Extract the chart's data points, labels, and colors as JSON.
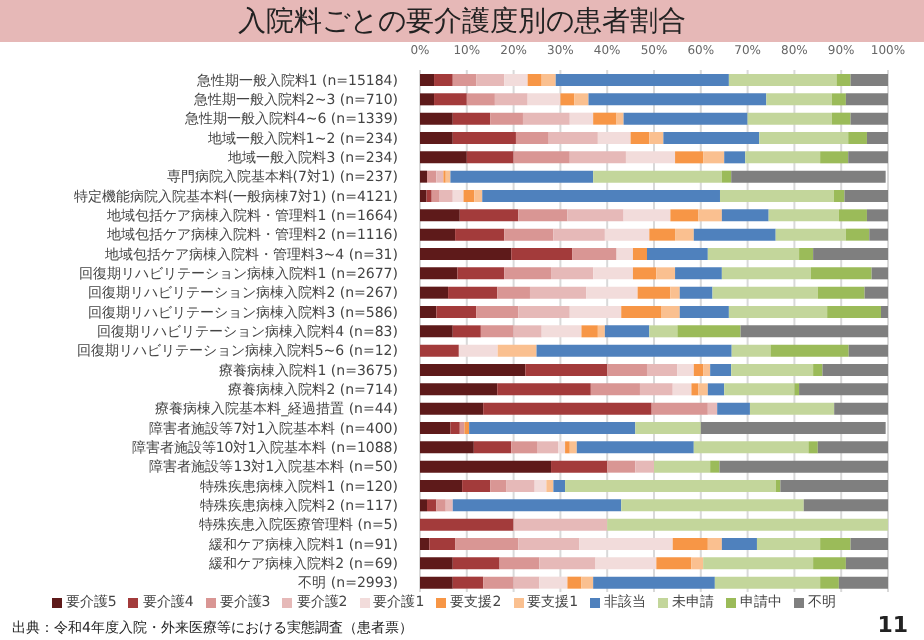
{
  "chart_data": {
    "type": "bar",
    "title": "入院料ごとの要介護度別の患者割合",
    "orientation": "horizontal",
    "stacked": true,
    "grid": "x",
    "legend": "bottom",
    "categories": [
      "急性期一般入院料1 (n=15184)",
      "急性期一般入院料2~3 (n=710)",
      "急性期一般入院料4~6 (n=1339)",
      "地域一般入院料1~2 (n=234)",
      "地域一般入院料3 (n=234)",
      "専門病院入院基本料(7対1) (n=237)",
      "特定機能病院入院基本料(一般病棟7対1) (n=4121)",
      "地域包括ケア病棟入院料・管理料1 (n=1664)",
      "地域包括ケア病棟入院料・管理料2 (n=1116)",
      "地域包括ケア病棟入院料・管理料3~4 (n=31)",
      "回復期リハビリテーション病棟入院料1 (n=2677)",
      "回復期リハビリテーション病棟入院料2 (n=267)",
      "回復期リハビリテーション病棟入院料3 (n=586)",
      "回復期リハビリテーション病棟入院料4 (n=83)",
      "回復期リハビリテーション病棟入院料5~6 (n=12)",
      "療養病棟入院料1 (n=3675)",
      "療養病棟入院料2 (n=714)",
      "療養病棟入院基本料_経過措置 (n=44)",
      "障害者施設等7対1入院基本料 (n=400)",
      "障害者施設等10対1入院基本料 (n=1088)",
      "障害者施設等13対1入院基本料 (n=50)",
      "特殊疾患病棟入院料1 (n=120)",
      "特殊疾患病棟入院料2 (n=117)",
      "特殊疾患入院医療管理料 (n=5)",
      "緩和ケア病棟入院料1 (n=91)",
      "緩和ケア病棟入院料2 (n=69)",
      "不明 (n=2993)"
    ],
    "xlim": [
      0,
      100
    ],
    "xticks": [
      {
        "value": 0,
        "label": "0%"
      },
      {
        "value": 10,
        "label": "10%"
      },
      {
        "value": 20,
        "label": "20%"
      },
      {
        "value": 30,
        "label": "30%"
      },
      {
        "value": 40,
        "label": "40%"
      },
      {
        "value": 50,
        "label": "50%"
      },
      {
        "value": 60,
        "label": "60%"
      },
      {
        "value": 70,
        "label": "70%"
      },
      {
        "value": 80,
        "label": "80%"
      },
      {
        "value": 90,
        "label": "90%"
      },
      {
        "value": 100,
        "label": "100%"
      }
    ],
    "series": [
      {
        "name": "要介護5",
        "color": "#5e1a1a",
        "values": [
          3,
          3,
          7,
          7,
          10,
          1.5,
          1.4,
          8.5,
          7.5,
          19.5,
          8,
          6,
          3.5,
          7,
          0,
          22.5,
          16.5,
          13.5,
          6.5,
          11.5,
          28,
          9,
          1.5,
          0,
          2,
          7,
          7
        ]
      },
      {
        "name": "要介護4",
        "color": "#a33b3b",
        "values": [
          4,
          7,
          8,
          13.5,
          10,
          0,
          1.1,
          12.5,
          10.5,
          13,
          10,
          10.5,
          8.5,
          6,
          8.3,
          17.5,
          20,
          36,
          2,
          8,
          12,
          6,
          2,
          20,
          5.5,
          10,
          6.5
        ]
      },
      {
        "name": "要介護3",
        "color": "#d99694",
        "values": [
          5,
          6,
          7,
          7,
          12,
          2,
          1.7,
          10.5,
          10.5,
          9.5,
          10,
          7,
          9,
          7,
          0,
          8.5,
          10.5,
          12,
          1,
          5.5,
          6,
          3.5,
          2,
          0,
          13.5,
          8.5,
          6.5
        ]
      },
      {
        "name": "要介護2",
        "color": "#e6b9b8",
        "values": [
          6,
          7,
          10,
          10.5,
          12,
          1.5,
          2.8,
          12,
          11,
          0,
          9,
          12,
          11,
          6,
          0,
          6.5,
          7,
          2,
          null,
          4.5,
          4,
          6,
          1.5,
          20,
          13,
          12,
          5.5
        ]
      },
      {
        "name": "要介護1",
        "color": "#f2dcdb",
        "values": [
          5,
          7,
          5,
          7,
          10.5,
          null,
          2.3,
          10,
          9.5,
          3.5,
          8.5,
          11,
          11,
          8.5,
          8.3,
          3.5,
          4,
          0,
          0,
          1.5,
          0,
          2.5,
          0,
          0,
          20,
          13,
          6
        ]
      },
      {
        "name": "要支援2",
        "color": "#f79646",
        "values": [
          3,
          3,
          5,
          4,
          6,
          0.5,
          2.3,
          6,
          5.5,
          3,
          5,
          7,
          8.5,
          3.5,
          0,
          2,
          1.5,
          0,
          1,
          1,
          0,
          0,
          0,
          0,
          7.5,
          7.5,
          3
        ]
      },
      {
        "name": "要支援1",
        "color": "#fac090",
        "values": [
          3,
          3,
          1.5,
          3,
          4.5,
          1,
          1.7,
          5,
          4,
          0,
          4,
          2,
          4,
          1.5,
          8.3,
          1.5,
          2,
          0,
          0,
          1.5,
          0,
          1.5,
          0,
          0,
          3,
          2.5,
          2.5
        ]
      },
      {
        "name": "非該当",
        "color": "#4f81bd",
        "values": [
          37,
          38,
          26.5,
          20.5,
          4.5,
          30.5,
          50.8,
          10,
          17.5,
          13,
          10,
          7,
          10.5,
          9.5,
          41.7,
          4.5,
          3.5,
          7,
          35.5,
          25,
          0,
          2.5,
          36,
          0,
          7.5,
          0,
          26
        ]
      },
      {
        "name": "未申請",
        "color": "#c3d69b",
        "values": [
          23,
          14,
          18,
          19,
          16,
          27.5,
          24.3,
          15,
          15,
          19.5,
          19,
          22.5,
          21,
          6,
          8.3,
          17.5,
          15,
          18,
          14,
          24.5,
          12,
          45,
          39,
          60,
          13.5,
          23.5,
          22.5
        ]
      },
      {
        "name": "申請中",
        "color": "#9bbb59",
        "values": [
          3,
          3,
          4,
          4,
          6,
          2,
          2.3,
          6,
          5,
          3,
          13,
          10,
          11.5,
          13.5,
          16.7,
          2,
          1,
          0,
          0,
          2,
          2,
          1,
          0,
          0,
          6.5,
          7,
          4
        ]
      },
      {
        "name": "不明",
        "color": "#7f7f7f",
        "values": [
          8,
          9,
          8,
          4.5,
          8.5,
          33,
          9.3,
          4.5,
          4,
          16,
          3.5,
          5,
          1.5,
          31.5,
          8.4,
          14,
          19,
          11.5,
          39.5,
          15,
          36,
          23,
          18,
          0,
          8,
          9,
          10.5
        ]
      }
    ],
    "annotations": [
      "出典：令和4年度入院・外来医療等における実態調査（患者票）",
      "11"
    ]
  }
}
